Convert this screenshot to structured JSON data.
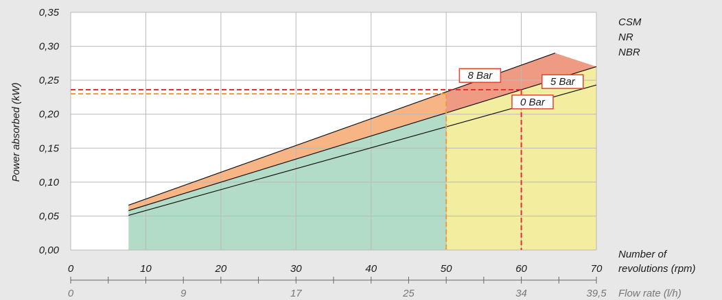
{
  "chart_data": {
    "type": "area",
    "ylabel": "Power absorbed (kW)",
    "xlabel": "Number of revolutions (rpm)",
    "x2label": "Flow rate (l/h)",
    "ylim": [
      0,
      0.35
    ],
    "xlim": [
      0,
      70
    ],
    "yticks": [
      "0,00",
      "0,05",
      "0,10",
      "0,15",
      "0,20",
      "0,25",
      "0,30",
      "0,35"
    ],
    "xticks": [
      "0",
      "10",
      "20",
      "30",
      "40",
      "50",
      "60",
      "70"
    ],
    "x2ticks": [
      {
        "x": 0,
        "label": "0"
      },
      {
        "x": 15,
        "label": "9"
      },
      {
        "x": 30,
        "label": "17"
      },
      {
        "x": 45,
        "label": "25"
      },
      {
        "x": 60,
        "label": "34"
      },
      {
        "x": 70,
        "label": "39,5"
      }
    ],
    "legend": [
      "CSM",
      "NR",
      "NBR"
    ],
    "grid": true,
    "series": [
      {
        "name": "0 Bar",
        "x": [
          7.7,
          70
        ],
        "y": [
          0.051,
          0.243
        ]
      },
      {
        "name": "5 Bar",
        "x": [
          7.7,
          70
        ],
        "y": [
          0.058,
          0.27
        ]
      },
      {
        "name": "8 Bar",
        "x": [
          7.7,
          64.5
        ],
        "y": [
          0.066,
          0.29
        ]
      }
    ],
    "regions": [
      {
        "material": "NBR",
        "x": [
          7.7,
          50
        ],
        "color": "#b3dcc8"
      },
      {
        "material": "NR",
        "x": [
          50,
          70
        ],
        "color": "#f3ee9f"
      }
    ],
    "bands": {
      "upper_band_color": "#f7b585",
      "top_band_color": "#ef9a82"
    },
    "reference_lines": [
      {
        "y": 0.236,
        "x": 60,
        "color": "#e53030"
      },
      {
        "y": 0.23,
        "x": 50,
        "color": "#f39a3a"
      }
    ],
    "label_boxes": [
      {
        "text": "8 Bar",
        "x": 54.5,
        "y": 0.257
      },
      {
        "text": "5 Bar",
        "x": 65.5,
        "y": 0.248
      },
      {
        "text": "0 Bar",
        "x": 61.5,
        "y": 0.218
      }
    ]
  }
}
